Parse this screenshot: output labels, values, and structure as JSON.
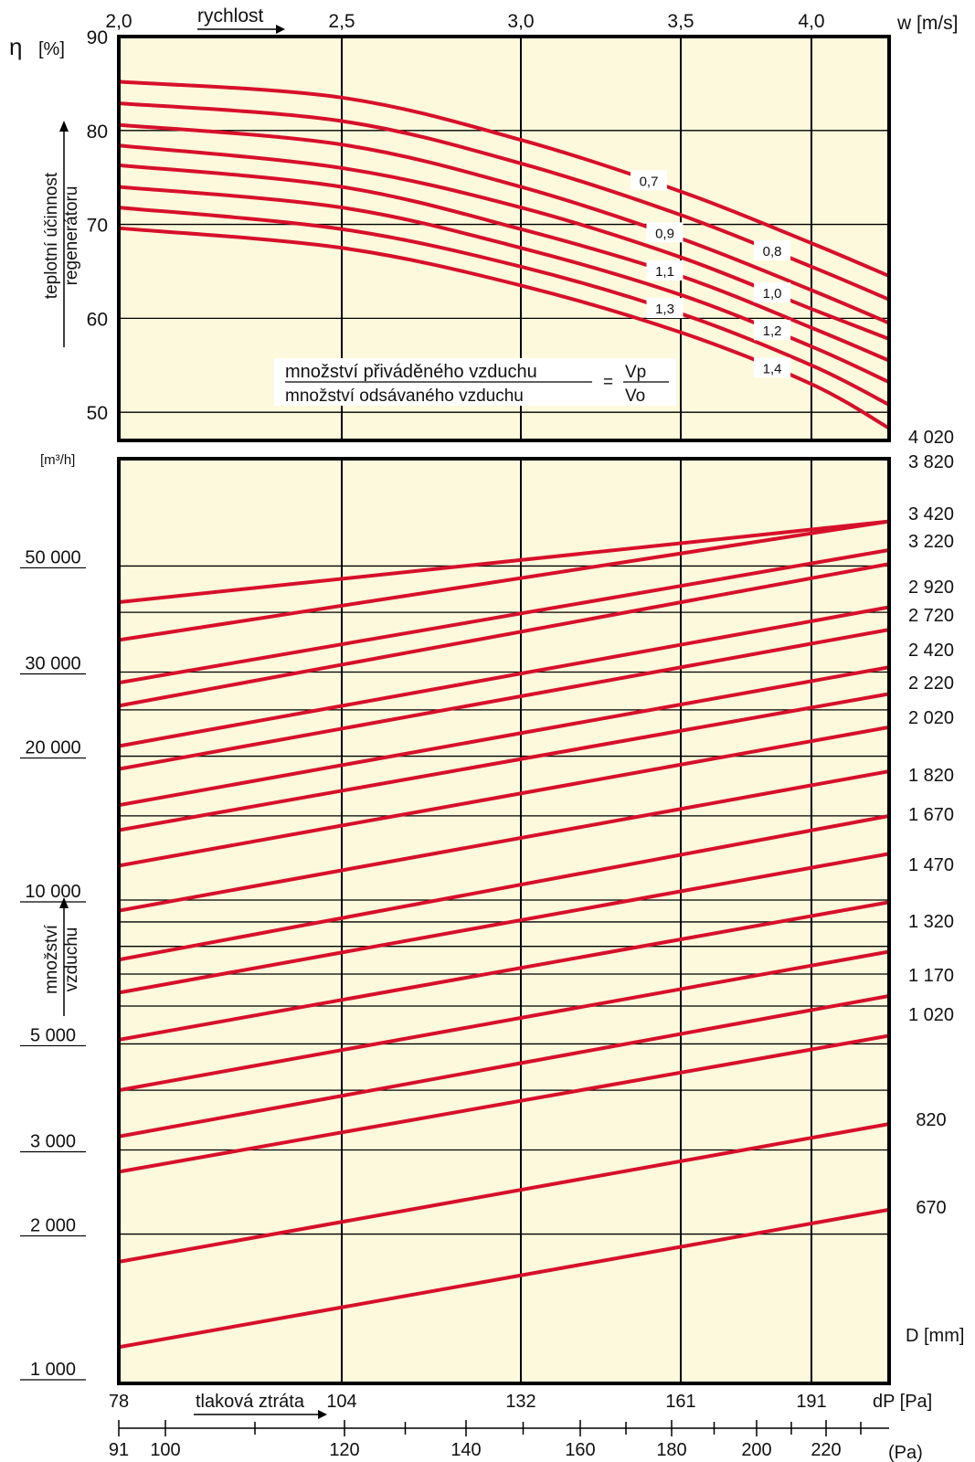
{
  "colors": {
    "background": "#fdf9dc",
    "curve": "#d7102a",
    "grid": "#000000"
  },
  "top_axis": {
    "label": "rychlost",
    "unit": "w [m/s]",
    "ticks": [
      "2,0",
      "2,5",
      "3,0",
      "3,5",
      "4,0"
    ]
  },
  "upper_chart": {
    "y_symbol": "η",
    "y_unit": "[%]",
    "y_title_line1": "teplotní účinnost",
    "y_title_line2": "regenerátoru",
    "y_ticks": [
      "90",
      "80",
      "70",
      "60",
      "50"
    ],
    "formula": {
      "numerator": "množství přiváděného vzduchu",
      "denominator": "množství odsávaného vzduchu",
      "equals": "=",
      "rhs_numerator": "Vp",
      "rhs_denominator": "Vo"
    }
  },
  "lower_chart": {
    "y_unit": "[m³/h]",
    "y_title_line1": "množství",
    "y_title_line2": "vzduchu",
    "y_ticks": [
      "50 000",
      "30 000",
      "20 000",
      "10 000",
      "5 000",
      "3 000",
      "2 000",
      "1 000"
    ],
    "diameter_unit": "D [mm]",
    "diameters": [
      "4 020",
      "3 820",
      "3 420",
      "3 220",
      "2 920",
      "2 720",
      "2 420",
      "2 220",
      "2 020",
      "1 820",
      "1 670",
      "1 470",
      "1 320",
      "1 170",
      "1 020",
      "820",
      "670"
    ]
  },
  "bottom_axis": {
    "label": "tlaková ztráta",
    "unit": "dP [Pa]",
    "ticks": [
      "78",
      "104",
      "132",
      "161",
      "191"
    ]
  },
  "bottom_scale": {
    "unit": "(Pa)",
    "ticks": [
      "91",
      "100",
      "120",
      "140",
      "160",
      "180",
      "200",
      "220"
    ]
  },
  "chart_data": [
    {
      "type": "line",
      "title": "",
      "xlabel": "rychlost w [m/s]",
      "ylabel": "teplotní účinnost regenerátoru η [%]",
      "xlim": [
        2.0,
        4.25
      ],
      "ylim": [
        47,
        90
      ],
      "grid": true,
      "series": [
        {
          "name": "0,7",
          "x": [
            2.0,
            2.5,
            3.0,
            3.5,
            4.0,
            4.25
          ],
          "y": [
            85.2,
            83.5,
            79.0,
            73.5,
            68.0,
            64.5
          ]
        },
        {
          "name": "0,8",
          "x": [
            2.0,
            2.5,
            3.0,
            3.5,
            4.0,
            4.25
          ],
          "y": [
            82.9,
            81.0,
            76.5,
            71.0,
            65.5,
            62.0
          ]
        },
        {
          "name": "0,9",
          "x": [
            2.0,
            2.5,
            3.0,
            3.5,
            4.0,
            4.25
          ],
          "y": [
            80.6,
            78.5,
            74.0,
            68.5,
            63.0,
            59.5
          ]
        },
        {
          "name": "1,0",
          "x": [
            2.0,
            2.5,
            3.0,
            3.5,
            4.0,
            4.25
          ],
          "y": [
            78.4,
            76.0,
            71.8,
            66.5,
            61.0,
            57.8
          ]
        },
        {
          "name": "1,1",
          "x": [
            2.0,
            2.5,
            3.0,
            3.5,
            4.0,
            4.25
          ],
          "y": [
            76.3,
            74.0,
            69.5,
            64.5,
            59.0,
            55.5
          ]
        },
        {
          "name": "1,2",
          "x": [
            2.0,
            2.5,
            3.0,
            3.5,
            4.0,
            4.25
          ],
          "y": [
            74.0,
            71.8,
            67.5,
            62.5,
            57.0,
            53.2
          ]
        },
        {
          "name": "1,3",
          "x": [
            2.0,
            2.5,
            3.0,
            3.5,
            4.0,
            4.25
          ],
          "y": [
            71.8,
            69.5,
            65.5,
            60.5,
            55.0,
            50.8
          ]
        },
        {
          "name": "1,4",
          "x": [
            2.0,
            2.5,
            3.0,
            3.5,
            4.0,
            4.25
          ],
          "y": [
            69.6,
            67.5,
            63.5,
            58.5,
            53.0,
            48.3
          ]
        }
      ]
    },
    {
      "type": "line",
      "title": "",
      "xlabel": "tlaková ztráta dP [Pa]",
      "ylabel": "množství vzduchu [m³/h]",
      "scale": "log",
      "ylim": [
        1000,
        60000
      ],
      "grid": true,
      "series": [
        {
          "name": "4 020",
          "y": [
            42000,
            62000
          ]
        },
        {
          "name": "3 820",
          "y": [
            35000,
            62000
          ]
        },
        {
          "name": "3 420",
          "y": [
            28500,
            54000
          ]
        },
        {
          "name": "3 220",
          "y": [
            25500,
            50500
          ]
        },
        {
          "name": "2 920",
          "y": [
            21000,
            41000
          ]
        },
        {
          "name": "2 720",
          "y": [
            18800,
            36800
          ]
        },
        {
          "name": "2 420",
          "y": [
            15800,
            30700
          ]
        },
        {
          "name": "2 220",
          "y": [
            14000,
            27000
          ]
        },
        {
          "name": "2 020",
          "y": [
            11800,
            23000
          ]
        },
        {
          "name": "1 820",
          "y": [
            9500,
            18600
          ]
        },
        {
          "name": "1 670",
          "y": [
            7500,
            15000
          ]
        },
        {
          "name": "1 470",
          "y": [
            6400,
            12500
          ]
        },
        {
          "name": "1 320",
          "y": [
            5100,
            9900
          ]
        },
        {
          "name": "1 170",
          "y": [
            4000,
            7800
          ]
        },
        {
          "name": "1 020",
          "y": [
            3200,
            6300
          ]
        },
        {
          "name": "820",
          "y": [
            2700,
            5200
          ]
        },
        {
          "name": "670",
          "y": [
            1750,
            3400
          ]
        },
        {
          "name": "",
          "y": [
            1160,
            2250
          ]
        }
      ]
    }
  ]
}
